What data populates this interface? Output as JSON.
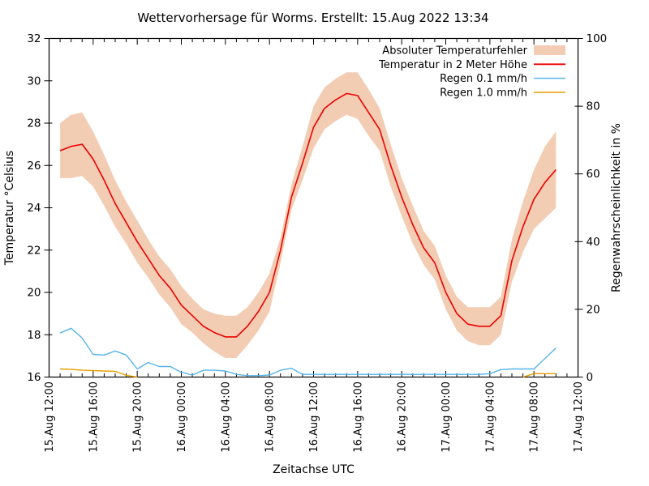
{
  "page": {
    "background_color": "#ffffff",
    "text_color": "#000000"
  },
  "chart_data": {
    "type": "line",
    "title": "Wettervorhersage für Worms. Erstellt: 15.Aug 2022 13:34",
    "xlabel": "Zeitachse UTC",
    "ylabel_left": "Temperatur °Celsius",
    "ylabel_right": "Regenwahrscheinlichkeit in %",
    "grid": false,
    "x_axis": {
      "range_hours": [
        0,
        48
      ],
      "minor_tick_every_hours": 1,
      "major_tick_every_hours": 4,
      "major_tick_labels": [
        "15.Aug 12:00",
        "15.Aug 16:00",
        "15.Aug 20:00",
        "16.Aug 00:00",
        "16.Aug 04:00",
        "16.Aug 08:00",
        "16.Aug 12:00",
        "16.Aug 16:00",
        "16.Aug 20:00",
        "17.Aug 00:00",
        "17.Aug 04:00",
        "17.Aug 08:00",
        "17.Aug 12:00"
      ]
    },
    "y_axis_left": {
      "min": 16,
      "max": 32,
      "tick_labels": [
        16,
        18,
        20,
        22,
        24,
        26,
        28,
        30,
        32
      ]
    },
    "y_axis_right": {
      "min": 0,
      "max": 100,
      "tick_labels": [
        0,
        20,
        40,
        60,
        80,
        100
      ]
    },
    "series_x_hours_after_axis_start": {
      "first": 1,
      "step": 1,
      "count": 46
    },
    "series": [
      {
        "name": "Absoluter Temperaturfehler",
        "type": "band",
        "axis": "left",
        "color": "#f2cdb4",
        "center_series": "Temperatur in 2 Meter Höhe",
        "margin_values": [
          1.3,
          1.5,
          1.5,
          1.3,
          1.2,
          1.1,
          1.0,
          1.0,
          0.9,
          0.9,
          0.9,
          0.9,
          0.8,
          0.8,
          0.9,
          1.0,
          1.0,
          0.9,
          0.9,
          0.9,
          0.6,
          0.6,
          0.8,
          1.0,
          1.0,
          1.0,
          1.0,
          1.1,
          1.1,
          1.0,
          1.0,
          0.9,
          0.9,
          0.8,
          0.8,
          0.8,
          0.8,
          0.8,
          0.9,
          0.9,
          0.9,
          1.0,
          1.2,
          1.4,
          1.7,
          1.8
        ]
      },
      {
        "name": "Temperatur in 2 Meter Höhe",
        "type": "line",
        "axis": "left",
        "color": "#ee0000",
        "values": [
          26.7,
          26.9,
          27.0,
          26.3,
          25.3,
          24.2,
          23.3,
          22.4,
          21.6,
          20.8,
          20.2,
          19.4,
          18.9,
          18.4,
          18.1,
          17.9,
          17.9,
          18.4,
          19.1,
          20.0,
          22.0,
          24.5,
          26.1,
          27.8,
          28.7,
          29.1,
          29.4,
          29.3,
          28.5,
          27.7,
          26.0,
          24.5,
          23.2,
          22.1,
          21.4,
          20.0,
          19.0,
          18.5,
          18.4,
          18.4,
          18.9,
          21.5,
          23.1,
          24.4,
          25.2,
          25.8
        ]
      },
      {
        "name": "Regen 0.1 mm/h",
        "type": "line",
        "axis": "right",
        "color": "#56b4e9",
        "values": [
          13.0,
          14.4,
          11.5,
          6.7,
          6.5,
          7.7,
          6.5,
          2.4,
          4.3,
          3.1,
          3.1,
          1.4,
          0.6,
          2.0,
          2.0,
          1.8,
          0.8,
          0.4,
          0.4,
          0.6,
          2.0,
          2.6,
          0.8,
          0.8,
          0.8,
          0.8,
          0.8,
          0.8,
          0.8,
          0.8,
          0.8,
          0.8,
          0.8,
          0.8,
          0.8,
          0.8,
          0.8,
          0.8,
          0.8,
          1.0,
          2.2,
          2.4,
          2.4,
          2.4,
          5.5,
          8.6
        ]
      },
      {
        "name": "Regen 1.0 mm/h",
        "type": "line",
        "axis": "right",
        "color": "#e69f00",
        "values": [
          2.4,
          2.3,
          2.0,
          1.9,
          1.8,
          1.7,
          0.5,
          0.0,
          0.0,
          0.0,
          0.0,
          0.0,
          0.0,
          0.0,
          0.0,
          0.0,
          0.0,
          0.0,
          0.0,
          0.0,
          0.0,
          0.0,
          0.0,
          0.0,
          0.0,
          0.0,
          0.0,
          0.0,
          0.0,
          0.0,
          0.0,
          0.0,
          0.0,
          0.0,
          0.0,
          0.0,
          0.0,
          0.0,
          0.0,
          0.0,
          0.0,
          0.0,
          0.0,
          1.0,
          1.0,
          1.0
        ]
      }
    ],
    "legend": {
      "position": "top-right-inside",
      "entries": [
        "Absoluter Temperaturfehler",
        "Temperatur in 2 Meter Höhe",
        "Regen 0.1 mm/h",
        "Regen 1.0 mm/h"
      ]
    }
  }
}
